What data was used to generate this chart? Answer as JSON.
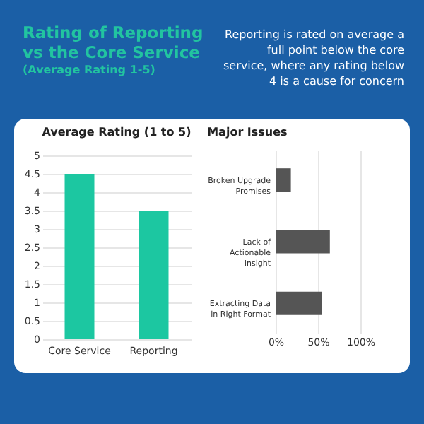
{
  "chart_data": [
    {
      "type": "other",
      "title": "Rating of Reporting vs the Core Service",
      "subtitle": "(Average Rating 1-5)",
      "annotations": [
        "Reporting is rated on average a full point below the core service, where any rating below 4 is a cause for concern"
      ]
    },
    {
      "type": "bar",
      "title": "Average Rating (1 to 5)",
      "categories": [
        "Core Service",
        "Reporting"
      ],
      "values": [
        4.5,
        3.5
      ],
      "color": "#1cc7a1",
      "ylim": [
        0,
        5
      ],
      "yticks": [
        0,
        0.5,
        1,
        1.5,
        2,
        2.5,
        3,
        3.5,
        4,
        4.5,
        5
      ],
      "grid": "y"
    },
    {
      "type": "bar",
      "orientation": "horizontal",
      "title": "Major Issues",
      "categories": [
        "Broken Upgrade Promises",
        "Lack of Actionable Insight",
        "Extracting Data in Right Format"
      ],
      "values": [
        18,
        64,
        55
      ],
      "color": "#555555",
      "xlim": [
        0,
        100
      ],
      "xticks": [
        {
          "value": 0,
          "label": "0%"
        },
        {
          "value": 50,
          "label": "50%"
        },
        {
          "value": 100,
          "label": "100%"
        }
      ],
      "grid": "x"
    }
  ]
}
